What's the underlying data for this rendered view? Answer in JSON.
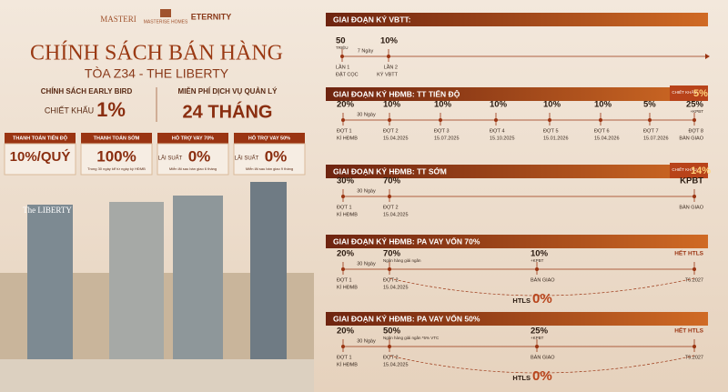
{
  "logos": [
    "MASTERI",
    "MASTERISE HOMES",
    "ETERNITY"
  ],
  "header": {
    "title": "CHÍNH SÁCH BÁN HÀNG",
    "subtitle": "TÒA Z34 - THE LIBERTY"
  },
  "highlights": [
    {
      "label": "CHÍNH SÁCH EARLY BIRD",
      "prefix": "CHIẾT KHẤU",
      "value": "1%"
    },
    {
      "label": "MIỄN PHÍ DỊCH VỤ QUẢN LÝ",
      "value": "24 THÁNG"
    }
  ],
  "cards": [
    {
      "title": "THANH TOÁN TIẾN ĐỘ",
      "value": "10%/QUÝ"
    },
    {
      "title": "THANH TOÁN SỚM",
      "value": "100%",
      "note": "Trong 30 ngày kể từ ngày ký HĐMB"
    },
    {
      "title": "HỖ TRỢ VAY 70%",
      "prefix": "LÃI SUẤT",
      "value": "0%",
      "note": "Miễn lãi sau bàn giao 6 tháng"
    },
    {
      "title": "HỖ TRỢ VAY 50%",
      "prefix": "LÃI SUẤT",
      "value": "0%",
      "note": "Miễn lãi sau bàn giao 9 tháng"
    }
  ],
  "building_label": "The LIBERTY",
  "sections": [
    {
      "title": "GIAI ĐOẠN KÝ VBTT:",
      "gap": "7 Ngày",
      "points": [
        {
          "value": "50",
          "sub": "TRIỆU",
          "lines": [
            "LẦN 1",
            "ĐẶT CỌC"
          ]
        },
        {
          "value": "10%",
          "lines": [
            "LẦN 2",
            "KÝ VBTT"
          ]
        }
      ]
    },
    {
      "title": "GIAI ĐOẠN KÝ HĐMB: TT TIẾN ĐỘ",
      "badge": {
        "label": "CHIẾT KHẤU",
        "value": "5%"
      },
      "gap": "30 Ngày",
      "points": [
        {
          "value": "20%",
          "lines": [
            "ĐỢT 1",
            "KÍ HĐMB"
          ]
        },
        {
          "value": "10%",
          "lines": [
            "ĐỢT 2",
            "15.04.2025"
          ]
        },
        {
          "value": "10%",
          "lines": [
            "ĐỢT 3",
            "15.07.2025"
          ]
        },
        {
          "value": "10%",
          "lines": [
            "ĐỢT 4",
            "15.10.2025"
          ]
        },
        {
          "value": "10%",
          "lines": [
            "ĐỢT 5",
            "15.01.2026"
          ]
        },
        {
          "value": "10%",
          "lines": [
            "ĐỢT 6",
            "15.04.2026"
          ]
        },
        {
          "value": "5%",
          "lines": [
            "ĐỢT 7",
            "15.07.2026"
          ]
        },
        {
          "value": "25%",
          "sub": "+KPBT",
          "lines": [
            "ĐỢT 8",
            "BÀN GIAO"
          ]
        }
      ]
    },
    {
      "title": "GIAI ĐOẠN KÝ HĐMB: TT SỚM",
      "badge": {
        "label": "CHIẾT KHẤU",
        "value": "14%"
      },
      "gap": "30 Ngày",
      "points": [
        {
          "value": "30%",
          "lines": [
            "ĐỢT 1",
            "KÍ HĐMB"
          ]
        },
        {
          "value": "70%",
          "lines": [
            "ĐỢT 2",
            "15.04.2025"
          ]
        },
        {
          "value": "KPBT",
          "lines": [
            "BÀN GIAO"
          ]
        }
      ]
    },
    {
      "title": "GIAI ĐOẠN KÝ HĐMB: PA VAY VỐN 70%",
      "gap": "30 Ngày",
      "htls": {
        "label": "HTLS",
        "value": "0%"
      },
      "points": [
        {
          "value": "20%",
          "lines": [
            "ĐỢT 1",
            "KÍ HĐMB"
          ]
        },
        {
          "value": "70%",
          "sub": "Ngân hàng giải ngân",
          "lines": [
            "ĐỢT 2",
            "15.04.2025"
          ]
        },
        {
          "value": "10%",
          "sub": "+KPBT",
          "lines": [
            "BÀN GIAO"
          ]
        },
        {
          "value": "HẾT HTLS",
          "lines": [
            "T6.2027"
          ]
        }
      ]
    },
    {
      "title": "GIAI ĐOẠN KÝ HĐMB: PA VAY VỐN 50%",
      "gap": "30 Ngày",
      "htls": {
        "label": "HTLS",
        "value": "0%"
      },
      "points": [
        {
          "value": "20%",
          "lines": [
            "ĐỢT 1",
            "KÍ HĐMB"
          ]
        },
        {
          "value": "50%",
          "sub": "Ngân hàng giải ngân *5% VTC",
          "lines": [
            "ĐỢT 2",
            "15.04.2025"
          ]
        },
        {
          "value": "25%",
          "sub": "+KPBT",
          "lines": [
            "BÀN GIAO"
          ]
        },
        {
          "value": "HẾT HTLS",
          "lines": [
            "T9.2027"
          ]
        }
      ]
    }
  ]
}
